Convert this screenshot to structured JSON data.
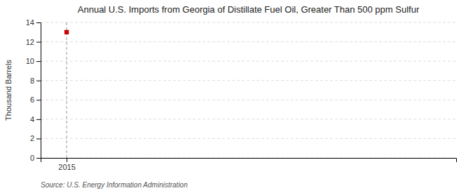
{
  "chart_data": {
    "type": "scatter",
    "title": "Annual U.S. Imports from Georgia of Distillate Fuel Oil, Greater Than 500 ppm Sulfur",
    "y_label": "Thousand Barrels",
    "source": "Source: U.S. Energy Information Administration",
    "x": [
      2015
    ],
    "values": [
      13
    ],
    "color": "#cc0000",
    "marker": "square",
    "xlim": [
      2014.5,
      2022.5
    ],
    "xticks": [
      2015
    ],
    "ylim": [
      0,
      14
    ],
    "yticks": [
      0,
      2,
      4,
      6,
      8,
      10,
      12,
      14
    ],
    "vlines": [
      2015
    ],
    "grid": true
  }
}
